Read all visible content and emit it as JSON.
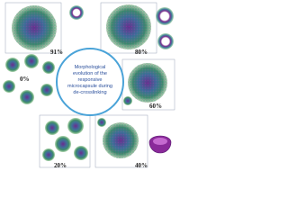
{
  "center": {
    "lines": [
      "Morphological",
      "evolution of the",
      "responsive",
      "microcapsule during",
      "de-crosslinking"
    ]
  },
  "snapshots": [
    {
      "label": "91%"
    },
    {
      "label": "80%"
    },
    {
      "label": "60%"
    },
    {
      "label": "40%"
    },
    {
      "label": "20%"
    },
    {
      "label": "0%"
    }
  ]
}
